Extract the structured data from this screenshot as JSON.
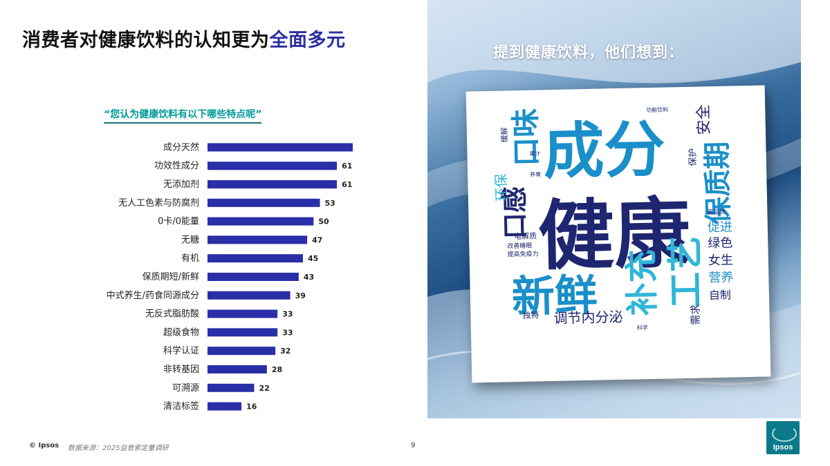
{
  "title": {
    "main": "消费者对健康饮料的认知更为",
    "highlight": "全面多元"
  },
  "question": "“您认为健康饮料有以下哪些特点呢”",
  "chart_data": {
    "type": "bar",
    "orientation": "horizontal",
    "categories": [
      "成分天然",
      "功效性成分",
      "无添加剂",
      "无人工色素与防腐剂",
      "0卡/0能量",
      "无糖",
      "有机",
      "保质期短/新鲜",
      "中式养生/药食同源成分",
      "无反式脂肪酸",
      "超级食物",
      "科学认证",
      "非转基因",
      "可溯源",
      "清洁标签"
    ],
    "values": [
      69,
      61,
      61,
      53,
      50,
      47,
      45,
      43,
      39,
      33,
      33,
      32,
      28,
      22,
      16
    ],
    "xlim": [
      0,
      75
    ],
    "bar_color": "#2a2fa8"
  },
  "panel": {
    "title": "提到健康饮料，他们想到：",
    "word_cloud": [
      {
        "text": "成分",
        "color": "#1a8fc9"
      },
      {
        "text": "健康",
        "color": "#1f2670"
      },
      {
        "text": "新鲜",
        "color": "#1a8fc9"
      },
      {
        "text": "口味",
        "color": "#1a8fc9"
      },
      {
        "text": "保质期",
        "color": "#1a8fc9"
      },
      {
        "text": "口感",
        "color": "#1f2670"
      },
      {
        "text": "工艺",
        "color": "#30b6d6"
      },
      {
        "text": "补充",
        "color": "#30b6d6"
      },
      {
        "text": "调节内分泌",
        "color": "#1f2670"
      },
      {
        "text": "安全",
        "color": "#1f2670"
      },
      {
        "text": "环保",
        "color": "#30b6d6"
      },
      {
        "text": "营养",
        "color": "#1a8fc9"
      },
      {
        "text": "女生",
        "color": "#1f2670"
      },
      {
        "text": "绿色",
        "color": "#1f2670"
      },
      {
        "text": "促进",
        "color": "#1a8fc9"
      },
      {
        "text": "自制",
        "color": "#1f2670"
      },
      {
        "text": "需求",
        "color": "#1f2670"
      },
      {
        "text": "独特",
        "color": "#1f2670"
      },
      {
        "text": "电解质",
        "color": "#1f2670"
      },
      {
        "text": "保护",
        "color": "#1f2670"
      },
      {
        "text": "高品质",
        "color": "#1f2670"
      },
      {
        "text": "功能饮料",
        "color": "#1f2670"
      },
      {
        "text": "缓解",
        "color": "#1f2670"
      },
      {
        "text": "提高免疫力",
        "color": "#1f2670"
      },
      {
        "text": "改善睡眠",
        "color": "#1f2670"
      },
      {
        "text": "果汁",
        "color": "#1f2670"
      },
      {
        "text": "科学",
        "color": "#1f2670"
      },
      {
        "text": "养胃",
        "color": "#1f2670"
      }
    ]
  },
  "footer": {
    "logo": "© Ipsos",
    "source": "数据来源：2025益普索定量调研",
    "page": "9",
    "brand": "Ipsos"
  }
}
